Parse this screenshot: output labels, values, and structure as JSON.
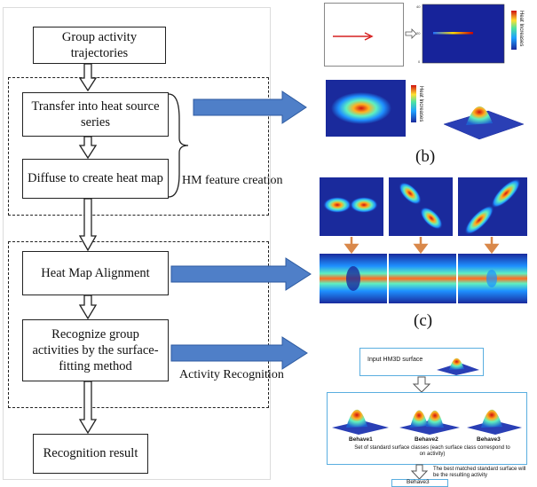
{
  "flowchart": {
    "steps": [
      "Group activity trajectories",
      "Transfer into heat source series",
      "Diffuse to create heat map",
      "Heat Map Alignment",
      "Recognize group activities by the surface-fitting method",
      "Recognition result"
    ],
    "group_labels": {
      "hm_feature": "HM feature creation",
      "activity_recognition": "Activity Recognition"
    }
  },
  "panels": {
    "b": {
      "caption": "(b)",
      "colorbar_label": "Heat Increases"
    },
    "c": {
      "caption": "(c)"
    },
    "d": {
      "input_label": "Input HM3D surface",
      "behaviors": [
        "Behave1",
        "Behave2",
        "Behave3"
      ],
      "set_label": "Set of standard surface classes (each surface class correspond to on activity)",
      "best_match_label": "The best matched standard surface will be the resulting activity",
      "result_label": "Behave3"
    }
  },
  "colors": {
    "arrow_blue": "#4f7fc8",
    "arrow_orange": "#d9884a",
    "heat_bg": "#1a2a9c",
    "panel_border": "#5aaee0"
  }
}
